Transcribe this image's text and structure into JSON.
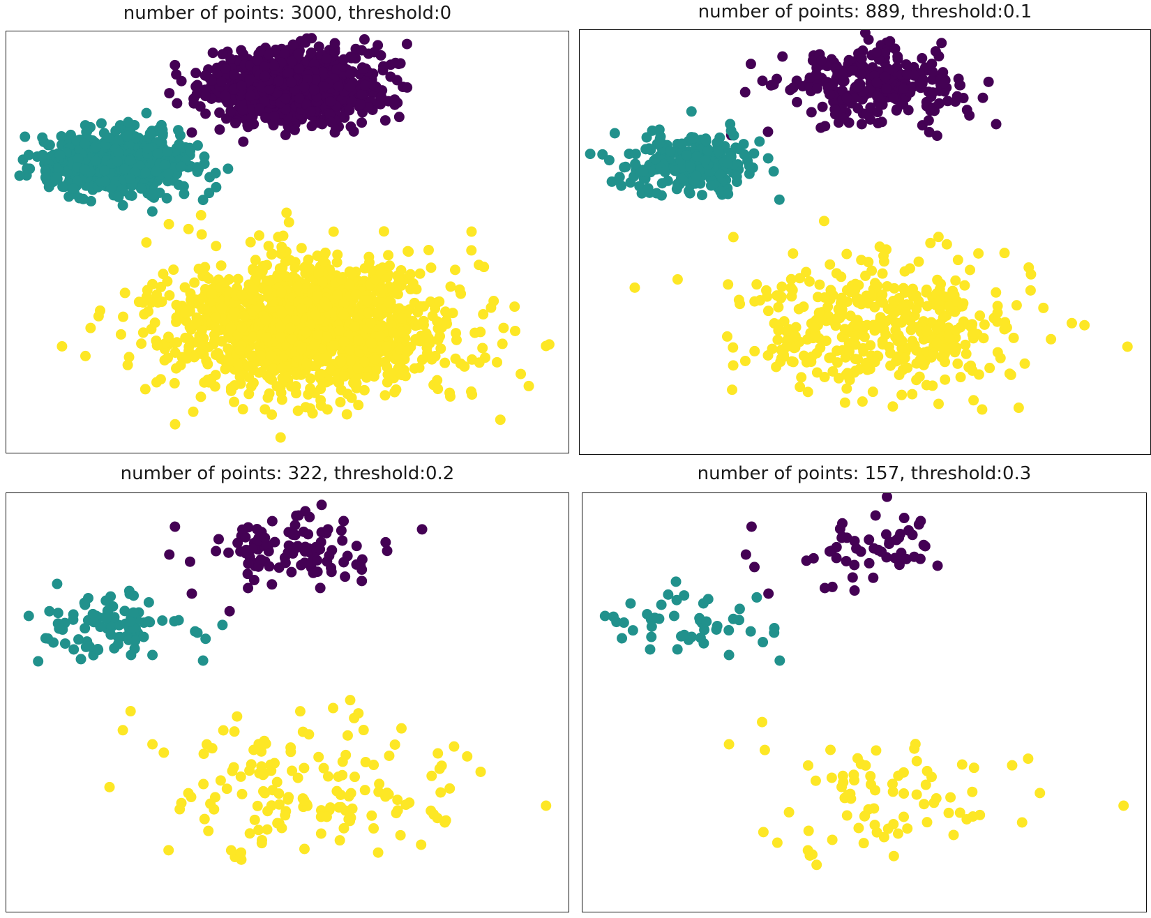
{
  "colors": {
    "cluster_0": "#440154",
    "cluster_1": "#21918c",
    "cluster_2": "#fde725"
  },
  "chart_data": [
    {
      "type": "scatter",
      "title": "number of points: 3000, threshold:0",
      "xlim": [
        0,
        100
      ],
      "ylim": [
        0,
        75
      ],
      "grid": false,
      "series": [
        {
          "values": [
            [
              30,
              69
            ],
            [
              29,
              64
            ],
            [
              60,
              70
            ],
            [
              52,
              71
            ],
            [
              63,
              62
            ],
            [
              33,
              57
            ],
            [
              43,
              58
            ],
            [
              46,
              67
            ]
          ],
          "color_key": "cluster_0"
        },
        {
          "values": [
            [
              4,
              53
            ],
            [
              7,
              49
            ],
            [
              22,
              52
            ],
            [
              34,
              50
            ],
            [
              14,
              55
            ],
            [
              26,
              46
            ],
            [
              35,
              45
            ],
            [
              12,
              47
            ]
          ],
          "color_key": "cluster_1"
        },
        {
          "values": [
            [
              26,
              30
            ],
            [
              96,
              19
            ],
            [
              40,
              11
            ],
            [
              56,
              14
            ],
            [
              78,
              16
            ],
            [
              57,
              17
            ],
            [
              49,
              15
            ],
            [
              44,
              29
            ]
          ],
          "color_key": "cluster_2"
        }
      ],
      "count": 3000
    },
    {
      "type": "scatter",
      "title": "number of points: 889, threshold:0.1",
      "xlim": [
        0,
        100
      ],
      "ylim": [
        0,
        75
      ],
      "grid": false,
      "series": [
        {
          "values": [
            [
              30,
              69
            ],
            [
              29,
              64
            ],
            [
              60,
              70
            ],
            [
              52,
              71
            ],
            [
              63,
              62
            ],
            [
              33,
              57
            ],
            [
              43,
              58
            ],
            [
              46,
              67
            ]
          ],
          "color_key": "cluster_0"
        },
        {
          "values": [
            [
              4,
              53
            ],
            [
              7,
              49
            ],
            [
              22,
              52
            ],
            [
              34,
              50
            ],
            [
              14,
              55
            ],
            [
              26,
              46
            ],
            [
              35,
              45
            ],
            [
              12,
              47
            ]
          ],
          "color_key": "cluster_1"
        },
        {
          "values": [
            [
              26,
              30
            ],
            [
              96,
              19
            ],
            [
              40,
              11
            ],
            [
              56,
              14
            ],
            [
              78,
              16
            ],
            [
              57,
              17
            ],
            [
              49,
              15
            ],
            [
              44,
              29
            ]
          ],
          "color_key": "cluster_2"
        }
      ],
      "count": 889
    },
    {
      "type": "scatter",
      "title": "number of points: 322, threshold:0.2",
      "xlim": [
        0,
        100
      ],
      "ylim": [
        0,
        75
      ],
      "grid": false,
      "series": [
        {
          "values": [
            [
              30,
              69
            ],
            [
              29,
              64
            ],
            [
              60,
              70
            ],
            [
              52,
              71
            ],
            [
              63,
              62
            ],
            [
              33,
              57
            ],
            [
              43,
              58
            ],
            [
              46,
              67
            ]
          ],
          "color_key": "cluster_0"
        },
        {
          "values": [
            [
              4,
              53
            ],
            [
              7,
              49
            ],
            [
              22,
              52
            ],
            [
              34,
              50
            ],
            [
              14,
              55
            ],
            [
              26,
              46
            ],
            [
              35,
              45
            ],
            [
              12,
              47
            ]
          ],
          "color_key": "cluster_1"
        },
        {
          "values": [
            [
              26,
              30
            ],
            [
              96,
              19
            ],
            [
              40,
              11
            ],
            [
              56,
              14
            ],
            [
              78,
              16
            ],
            [
              57,
              17
            ],
            [
              49,
              15
            ],
            [
              44,
              29
            ]
          ],
          "color_key": "cluster_2"
        }
      ],
      "count": 322
    },
    {
      "type": "scatter",
      "title": "number of points: 157, threshold:0.3",
      "xlim": [
        0,
        100
      ],
      "ylim": [
        0,
        75
      ],
      "grid": false,
      "series": [
        {
          "values": [
            [
              30,
              69
            ],
            [
              29,
              64
            ],
            [
              60,
              70
            ],
            [
              52,
              71
            ],
            [
              63,
              62
            ],
            [
              33,
              57
            ],
            [
              43,
              58
            ],
            [
              46,
              67
            ]
          ],
          "color_key": "cluster_0"
        },
        {
          "values": [
            [
              4,
              53
            ],
            [
              7,
              49
            ],
            [
              22,
              52
            ],
            [
              34,
              50
            ],
            [
              14,
              55
            ],
            [
              26,
              46
            ],
            [
              35,
              45
            ],
            [
              12,
              47
            ]
          ],
          "color_key": "cluster_1"
        },
        {
          "values": [
            [
              26,
              30
            ],
            [
              96,
              19
            ],
            [
              40,
              11
            ],
            [
              56,
              14
            ],
            [
              78,
              16
            ],
            [
              57,
              17
            ],
            [
              49,
              15
            ],
            [
              44,
              29
            ]
          ],
          "color_key": "cluster_2"
        }
      ],
      "count": 157
    }
  ]
}
